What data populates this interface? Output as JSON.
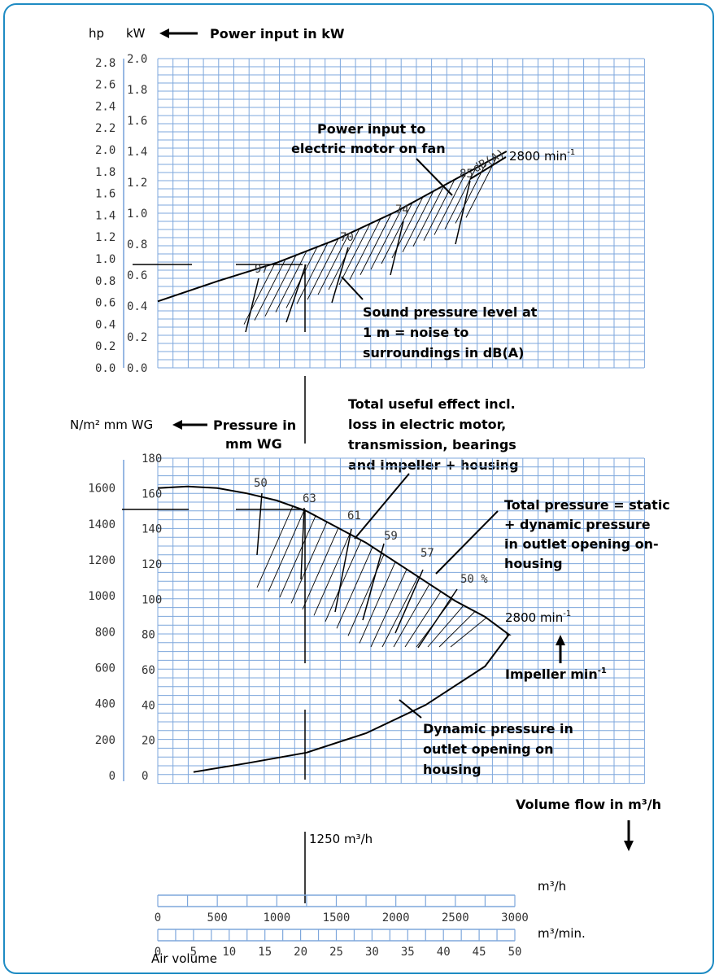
{
  "chart_data": [
    {
      "type": "line",
      "panel": "power",
      "unit_labels": {
        "left": "hp",
        "right": "kW"
      },
      "title": "Power input in kW",
      "yticks_hp": [
        "2.8",
        "2.6",
        "2.4",
        "2.2",
        "2.0",
        "1.8",
        "1.6",
        "1.4",
        "1.2",
        "1.0",
        "0.8",
        "0.6",
        "0.4",
        "0.2",
        "0.0"
      ],
      "yticks_kw": [
        "2.0",
        "1.8",
        "1.6",
        "1.4",
        "1.2",
        "1.0",
        "0.8",
        "0.6",
        "0.4",
        "0.2",
        "0.0"
      ],
      "ylim_kw": [
        0,
        2.0
      ],
      "series": [
        {
          "name": "2800 min-1",
          "x": [
            0,
            500,
            1000,
            1500,
            2000,
            2500,
            2930
          ],
          "y": [
            0.43,
            0.56,
            0.68,
            0.83,
            1.01,
            1.22,
            1.4
          ]
        }
      ],
      "sound_labels": [
        {
          "text": "97",
          "x": 860
        },
        {
          "text": "70",
          "x": 1570
        },
        {
          "text": "74",
          "x": 2000
        },
        {
          "text": "85",
          "x": 2400
        },
        {
          "text": "dB(A)",
          "x": 2700
        }
      ],
      "annotations": [
        "Power input to",
        "electric motor on fan",
        "Sound pressure level at",
        "1 m = noise to",
        "surroundings in dB(A)"
      ],
      "speed_label": "2800 min",
      "speed_sup": "-1"
    },
    {
      "type": "line",
      "panel": "pressure",
      "unit_labels": {
        "left": "N/m² mm WG",
        "title1": "Pressure in",
        "title2": "mm WG"
      },
      "yticks_nm2": [
        "1600",
        "1400",
        "1200",
        "1000",
        "800",
        "600",
        "400",
        "200",
        "0"
      ],
      "yticks_mmwg": [
        "180",
        "160",
        "140",
        "120",
        "100",
        "80",
        "60",
        "40",
        "20",
        "0"
      ],
      "ylim_mmwg": [
        0,
        180
      ],
      "series": [
        {
          "name": "Total pressure",
          "x": [
            0,
            250,
            500,
            750,
            1000,
            1250,
            1500,
            1750,
            2000,
            2250,
            2500,
            2750,
            2950
          ],
          "y": [
            163,
            164,
            163,
            160,
            156,
            150,
            141,
            132,
            121,
            110,
            99,
            90,
            80
          ]
        },
        {
          "name": "Dynamic pressure",
          "x": [
            300,
            750,
            1250,
            1750,
            2250,
            2750,
            2950
          ],
          "y": [
            2,
            7,
            13,
            24,
            40,
            62,
            80
          ]
        }
      ],
      "efficiency_labels": [
        {
          "text": "50",
          "x": 880
        },
        {
          "text": "63",
          "x": 1260
        },
        {
          "text": "61",
          "x": 1580
        },
        {
          "text": "59",
          "x": 1920
        },
        {
          "text": "57",
          "x": 2270
        },
        {
          "text": "50 %",
          "x": 2610
        }
      ],
      "annotations": [
        "Total useful effect incl.",
        "loss in electric motor,",
        "transmission, bearings",
        "and impeller + housing",
        "Total pressure = static",
        "+ dynamic pressure",
        "in outlet opening on-",
        "housing",
        "Dynamic pressure in",
        "outlet opening on",
        "housing",
        "Impeller min",
        "Volume flow in m³/h"
      ],
      "speed_label": "2800 min",
      "speed_sup": "-1",
      "operating_point": "1250 m³/h"
    }
  ],
  "axis_m3h": {
    "unit": "m³/h",
    "ticks": [
      "0",
      "500",
      "1000",
      "1500",
      "2000",
      "2500",
      "3000"
    ]
  },
  "axis_m3min": {
    "unit": "m³/min.",
    "ticks": [
      "0",
      "5",
      "10",
      "15",
      "20",
      "25",
      "30",
      "35",
      "40",
      "45",
      "50"
    ]
  },
  "air_volume_label": "Air volume",
  "colors": {
    "grid": "#7ea7dc",
    "frame": "#1e8bc3",
    "curve": "#000000"
  }
}
